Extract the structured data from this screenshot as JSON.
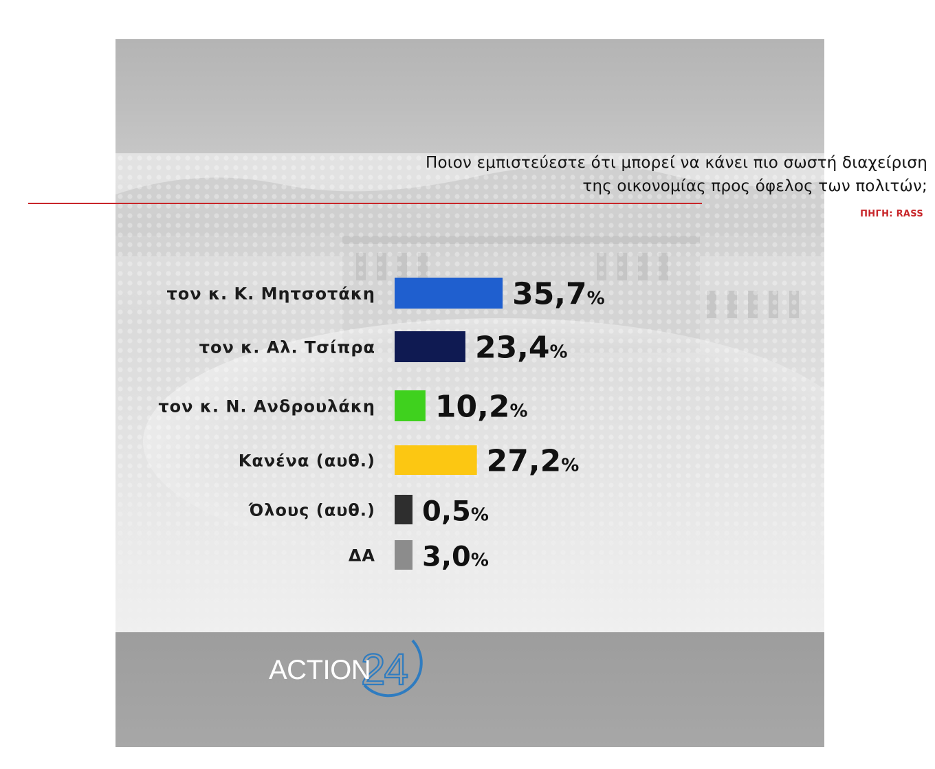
{
  "question": {
    "line1": "Ποιον εμπιστεύεστε ότι μπορεί να κάνει πιο σωστή διαχείριση",
    "line2": "της οικονομίας προς όφελος των πολιτών;"
  },
  "source": "ΠΗΓΗ: RASS",
  "logo": {
    "word": "ACTION",
    "number": "24"
  },
  "colors": {
    "rule": "#c8262a",
    "logo_accent": "#2f7cc0"
  },
  "chart_data": {
    "type": "bar",
    "orientation": "horizontal",
    "title": "",
    "xlabel": "",
    "ylabel": "",
    "unit": "%",
    "xlim": [
      0,
      100
    ],
    "grid": false,
    "categories": [
      "τον κ. Κ. Μητσοτάκη",
      "τον κ. Αλ. Τσίπρα",
      "τον κ. Ν. Ανδρουλάκη",
      "Κανένα (αυθ.)",
      "Όλους (αυθ.)",
      "ΔΑ"
    ],
    "values": [
      35.7,
      23.4,
      10.2,
      27.2,
      0.5,
      3.0
    ],
    "value_labels": [
      "35,7",
      "23,4",
      "10,2",
      "27,2",
      "0,5",
      "3,0"
    ],
    "colors": [
      "#1f5fcf",
      "#0f1a52",
      "#3fd11e",
      "#fcc712",
      "#2e2e2e",
      "#8c8c8c"
    ]
  }
}
